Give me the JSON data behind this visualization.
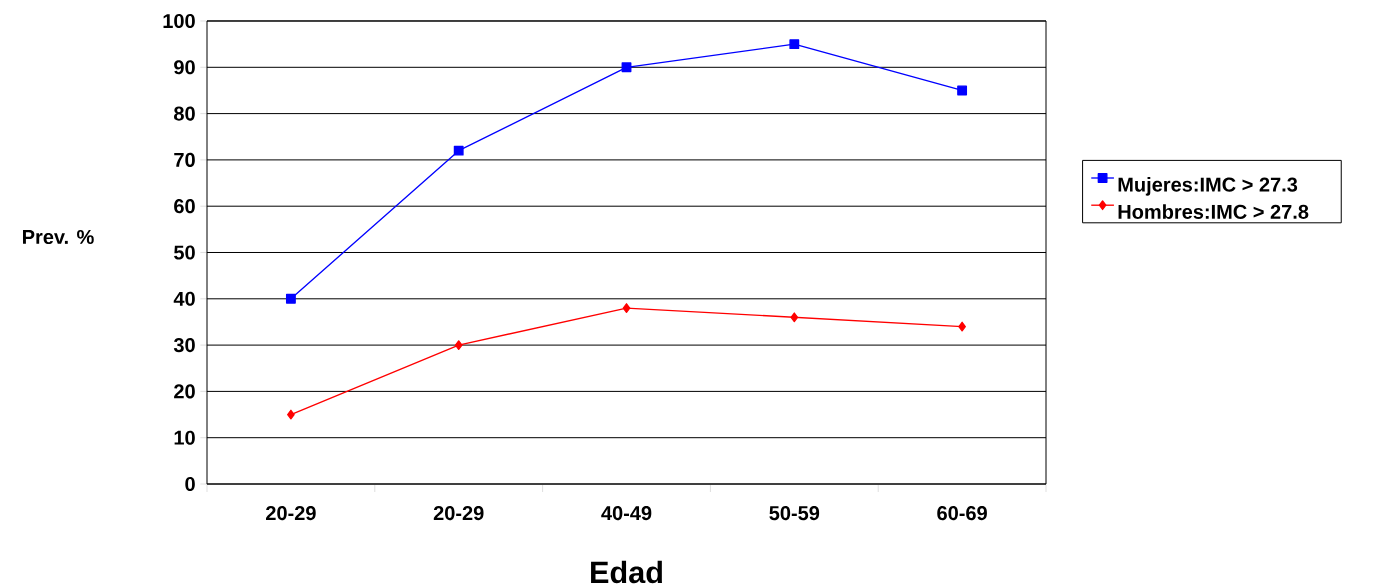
{
  "chart_data": {
    "type": "line",
    "xlabel": "Edad",
    "ylabel": "Prev. %",
    "categories": [
      "20-29",
      "20-29",
      "40-49",
      "50-59",
      "60-69"
    ],
    "series": [
      {
        "name": "Mujeres:IMC > 27.3",
        "color": "#0000ff",
        "marker": "square",
        "values": [
          40,
          72,
          90,
          95,
          85
        ]
      },
      {
        "name": "Hombres:IMC > 27.8",
        "color": "#ff0000",
        "marker": "diamond",
        "values": [
          15,
          30,
          38,
          36,
          34
        ]
      }
    ],
    "ylim": [
      0,
      100
    ],
    "yticks": [
      0,
      10,
      20,
      30,
      40,
      50,
      60,
      70,
      80,
      90,
      100
    ],
    "grid": "y",
    "legend": "right"
  }
}
